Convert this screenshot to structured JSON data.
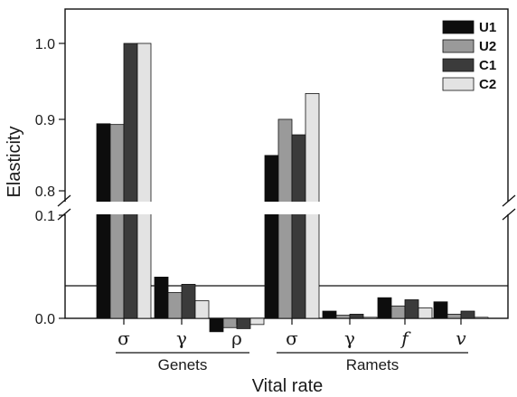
{
  "chart_data": {
    "type": "bar",
    "xlabel": "Vital rate",
    "ylabel": "Elasticity",
    "y_ticks": [
      "0.0",
      "0.1",
      "0.8",
      "0.9",
      "1.0"
    ],
    "y_axis_break": {
      "lower_max": 0.1,
      "upper_min": 0.8
    },
    "ylim_lower": [
      0,
      0.1
    ],
    "ylim_upper": [
      0.8,
      1.05
    ],
    "zero_reference_line": 0.0,
    "categories": [
      "σ",
      "γ",
      "ρ",
      "σ",
      "γ",
      "f",
      "v"
    ],
    "category_groups": [
      {
        "label": "Genets",
        "indices": [
          0,
          1,
          2
        ]
      },
      {
        "label": "Ramets",
        "indices": [
          3,
          4,
          5,
          6
        ]
      }
    ],
    "series": [
      {
        "name": "U1",
        "color": "#0d0d0d",
        "values": [
          0.891,
          0.04,
          -0.013,
          0.848,
          0.007,
          0.02,
          0.016
        ]
      },
      {
        "name": "U2",
        "color": "#9a9a9a",
        "values": [
          0.89,
          0.025,
          -0.009,
          0.897,
          0.003,
          0.012,
          0.004
        ]
      },
      {
        "name": "C1",
        "color": "#3b3b3b",
        "values": [
          1.0,
          0.033,
          -0.01,
          0.876,
          0.004,
          0.018,
          0.007
        ]
      },
      {
        "name": "C2",
        "color": "#e3e3e3",
        "values": [
          1.0,
          0.017,
          -0.006,
          0.932,
          0.001,
          0.01,
          0.001
        ]
      }
    ],
    "legend_position": "top-right",
    "grid": false
  }
}
